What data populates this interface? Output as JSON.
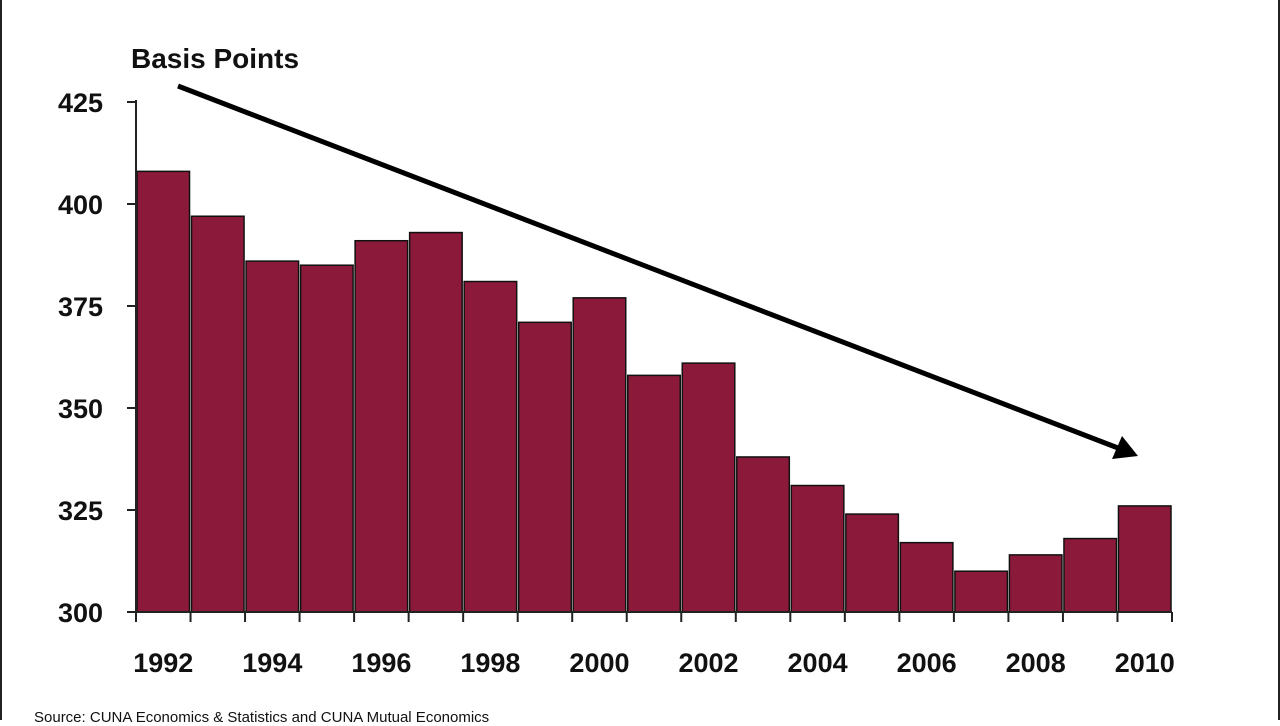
{
  "chart_data": {
    "type": "bar",
    "ylabel": "Basis Points",
    "categories": [
      "1992",
      "1993",
      "1994",
      "1995",
      "1996",
      "1997",
      "1998",
      "1999",
      "2000",
      "2001",
      "2002",
      "2003",
      "2004",
      "2005",
      "2006",
      "2007",
      "2008",
      "2009",
      "2010"
    ],
    "values": [
      408,
      397,
      386,
      385,
      391,
      393,
      381,
      371,
      377,
      358,
      361,
      338,
      331,
      324,
      317,
      310,
      314,
      318,
      326
    ],
    "x_tick_labels": [
      "1992",
      "1994",
      "1996",
      "1998",
      "2000",
      "2002",
      "2004",
      "2006",
      "2008",
      "2010"
    ],
    "y_ticks": [
      300,
      325,
      350,
      375,
      400,
      425
    ],
    "ylim": [
      300,
      425
    ],
    "bar_color": "#8b1a3a",
    "grid": false,
    "annotation": "downward-trend-arrow",
    "source": "Source: CUNA Economics & Statistics and CUNA Mutual Economics"
  }
}
